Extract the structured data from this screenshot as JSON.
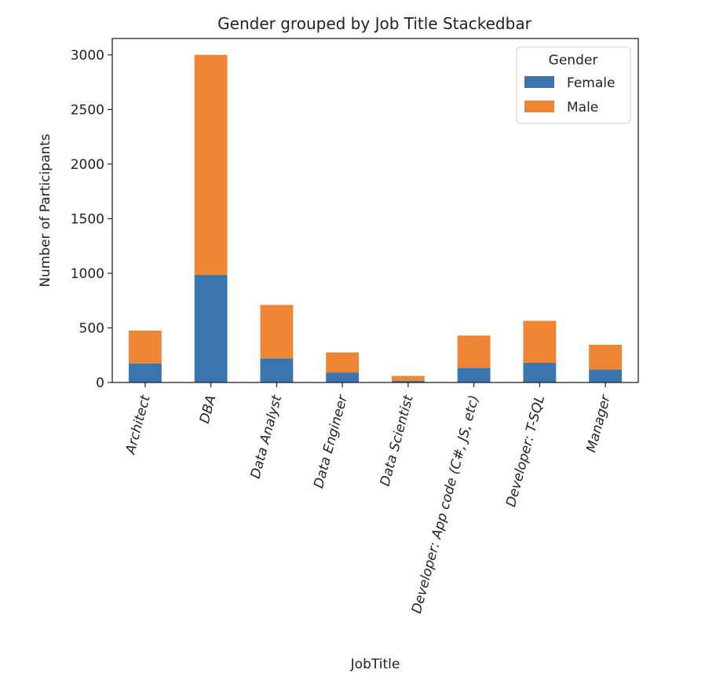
{
  "chart_data": {
    "type": "bar",
    "stacked": true,
    "title": "Gender grouped by Job Title Stackedbar",
    "xlabel": "JobTitle",
    "ylabel": "Number of Participants",
    "categories": [
      "Architect",
      "DBA",
      "Data Analyst",
      "Data Engineer",
      "Data Scientist",
      "Developer: App code (C#, JS, etc)",
      "Developer: T-SQL",
      "Manager"
    ],
    "series": [
      {
        "name": "Female",
        "color": "#3a75b0",
        "values": [
          175,
          985,
          220,
          90,
          15,
          135,
          180,
          118
        ]
      },
      {
        "name": "Male",
        "color": "#ef8636",
        "values": [
          300,
          2015,
          490,
          185,
          45,
          295,
          385,
          227
        ]
      }
    ],
    "ylim": [
      0,
      3150
    ],
    "yticks": [
      0,
      500,
      1000,
      1500,
      2000,
      2500,
      3000
    ],
    "legend": {
      "title": "Gender",
      "position": "top-right"
    },
    "grid": false
  }
}
